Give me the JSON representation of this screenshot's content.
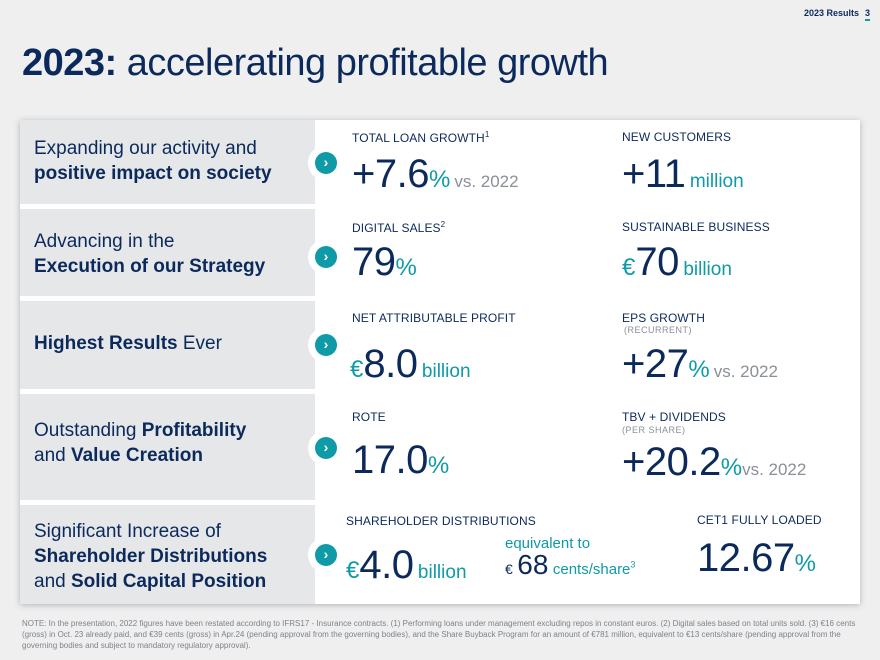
{
  "header": {
    "section": "2023 Results",
    "page": "3"
  },
  "title": {
    "bold": "2023:",
    "light": "accelerating profitable growth"
  },
  "rows": [
    {
      "line1": "Expanding our activity and",
      "line2": "positive impact on society"
    },
    {
      "line1": "Advancing in the",
      "line2": "Execution of our Strategy"
    },
    {
      "bold": "Highest Results",
      "rest": " Ever"
    },
    {
      "pre1": "Outstanding ",
      "bold1": "Profitability",
      "pre2": "and ",
      "bold2": "Value Creation"
    },
    {
      "line1": "Significant Increase of",
      "line2": "Shareholder Distributions",
      "pre3": "and ",
      "bold3": "Solid Capital Position"
    }
  ],
  "metrics": {
    "loan_growth": {
      "label": "TOTAL LOAN GROWTH",
      "sup": "1",
      "value": "+7.6",
      "suffix": "%",
      "vs": "vs. 2022"
    },
    "new_customers": {
      "label": "NEW CUSTOMERS",
      "value": "+11",
      "unit": "million"
    },
    "digital_sales": {
      "label": "DIGITAL SALES",
      "sup": "2",
      "value": "79",
      "suffix": "%"
    },
    "sustainable": {
      "label": "SUSTAINABLE BUSINESS",
      "prefix": "€",
      "value": "70",
      "unit": "billion"
    },
    "net_profit": {
      "label": "NET ATTRIBUTABLE PROFIT",
      "prefix": "€",
      "value": "8.0",
      "unit": "billion"
    },
    "eps_growth": {
      "label": "EPS GROWTH",
      "sub": "(RECURRENT)",
      "value": "+27",
      "suffix": "%",
      "vs": "vs. 2022"
    },
    "rote": {
      "label": "ROTE",
      "value": "17.0",
      "suffix": "%"
    },
    "tbv": {
      "label": "TBV + DIVIDENDS",
      "sub": "(PER SHARE)",
      "value": "+20.2",
      "suffix": "%",
      "vs": "vs. 2022"
    },
    "distributions": {
      "label": "SHAREHOLDER DISTRIBUTIONS",
      "prefix": "€",
      "value": "4.0",
      "unit": "billion",
      "equiv": "equivalent to",
      "eq_prefix": "€",
      "eq_value": "68",
      "eq_unit": "cents/share",
      "eq_sup": "3"
    },
    "cet1": {
      "label": "CET1 FULLY LOADED",
      "value": "12.67",
      "suffix": "%"
    }
  },
  "note": "NOTE: In the presentation, 2022 figures have been restated according to IFRS17 - Insurance contracts. (1) Performing loans under management excluding repos in constant euros. (2) Digital sales based on total units sold. (3) €16 cents (gross) in Oct. 23 already paid, and €39 cents (gross) in Apr.24 (pending approval from the governing bodies), and the Share Buyback Program for an amount of €781 million, equivalent to €13 cents/share (pending approval from the governing bodies and subject to mandatory regulatory approval)."
}
